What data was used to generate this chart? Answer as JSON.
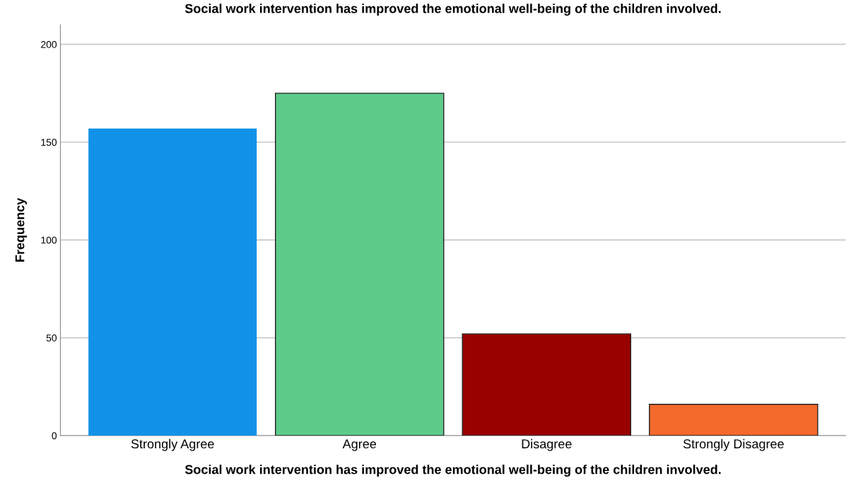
{
  "chart_data": {
    "type": "bar",
    "title": "Social work intervention has improved the emotional well-being of the children involved.",
    "xlabel": "Social work intervention has improved the emotional well-being of the children involved.",
    "ylabel": "Frequency",
    "categories": [
      "Strongly Agree",
      "Agree",
      "Disagree",
      "Strongly Disagree"
    ],
    "values": [
      157,
      175,
      52,
      16
    ],
    "colors": [
      "#1192e8",
      "#5ecb8b",
      "#990000",
      "#f4692c"
    ],
    "ylim": [
      0,
      210
    ],
    "yticks": [
      0,
      50,
      100,
      150,
      200
    ],
    "grid": "y"
  }
}
